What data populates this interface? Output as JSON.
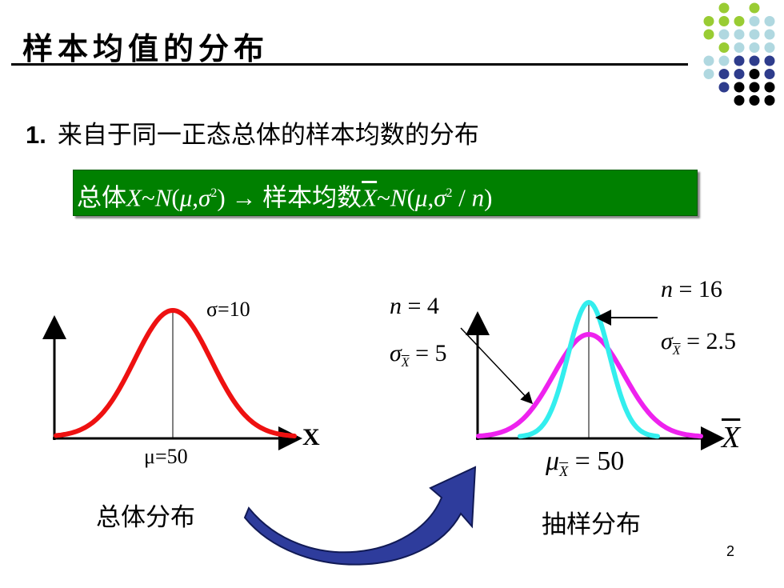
{
  "slide": {
    "title": "样本均值的分布",
    "heading_number": "1.",
    "heading_text": "来自于同一正态总体的样本均数的分布",
    "formula": {
      "p1": "总体",
      "p2": "X",
      "p3": "~",
      "p4": "N",
      "p5": "(",
      "p6": "μ",
      "p7": ",",
      "p8": "σ",
      "p9": "2",
      "p10": ")",
      "p11": "→",
      "p12": "样本均数",
      "p13": "X",
      "p14": "~",
      "p15": "N",
      "p16": "(",
      "p17": "μ",
      "p18": ",",
      "p19": "σ",
      "p20": "2",
      "p21": " / ",
      "p22": "n",
      "p23": ")"
    },
    "population_chart": {
      "sigma_label": "σ=10",
      "mu_label": "μ=50",
      "x_label": "X",
      "caption": "总体分布",
      "curve_color": "#ee1111"
    },
    "sampling_chart": {
      "n4_label_n": "n",
      "n4_label_eq": " = 4",
      "sd4_label_sigma": "σ",
      "sd4_label_sub": "X",
      "sd4_label_eq": " = 5",
      "n16_label_n": "n",
      "n16_label_eq": " = 16",
      "sd16_label_sigma": "σ",
      "sd16_label_sub": "X",
      "sd16_label_eq": " = 2.5",
      "mu_label_mu": "μ",
      "mu_label_sub": "X",
      "mu_label_eq": " = 50",
      "x_label": "X",
      "caption": "抽样分布",
      "curve_n4_color": "#ee22ee",
      "curve_n16_color": "#33eeee"
    },
    "page_number": "2",
    "colors": {
      "formula_bg": "#008000",
      "arrow": "#2e3c9c",
      "dot_green": "#99cc33",
      "dot_lightblue": "#b0d8e0",
      "dot_navy": "#2e3c8c",
      "dot_black": "#000000"
    },
    "icons": [
      "curved-arrow-icon",
      "dot-grid-decoration"
    ]
  }
}
